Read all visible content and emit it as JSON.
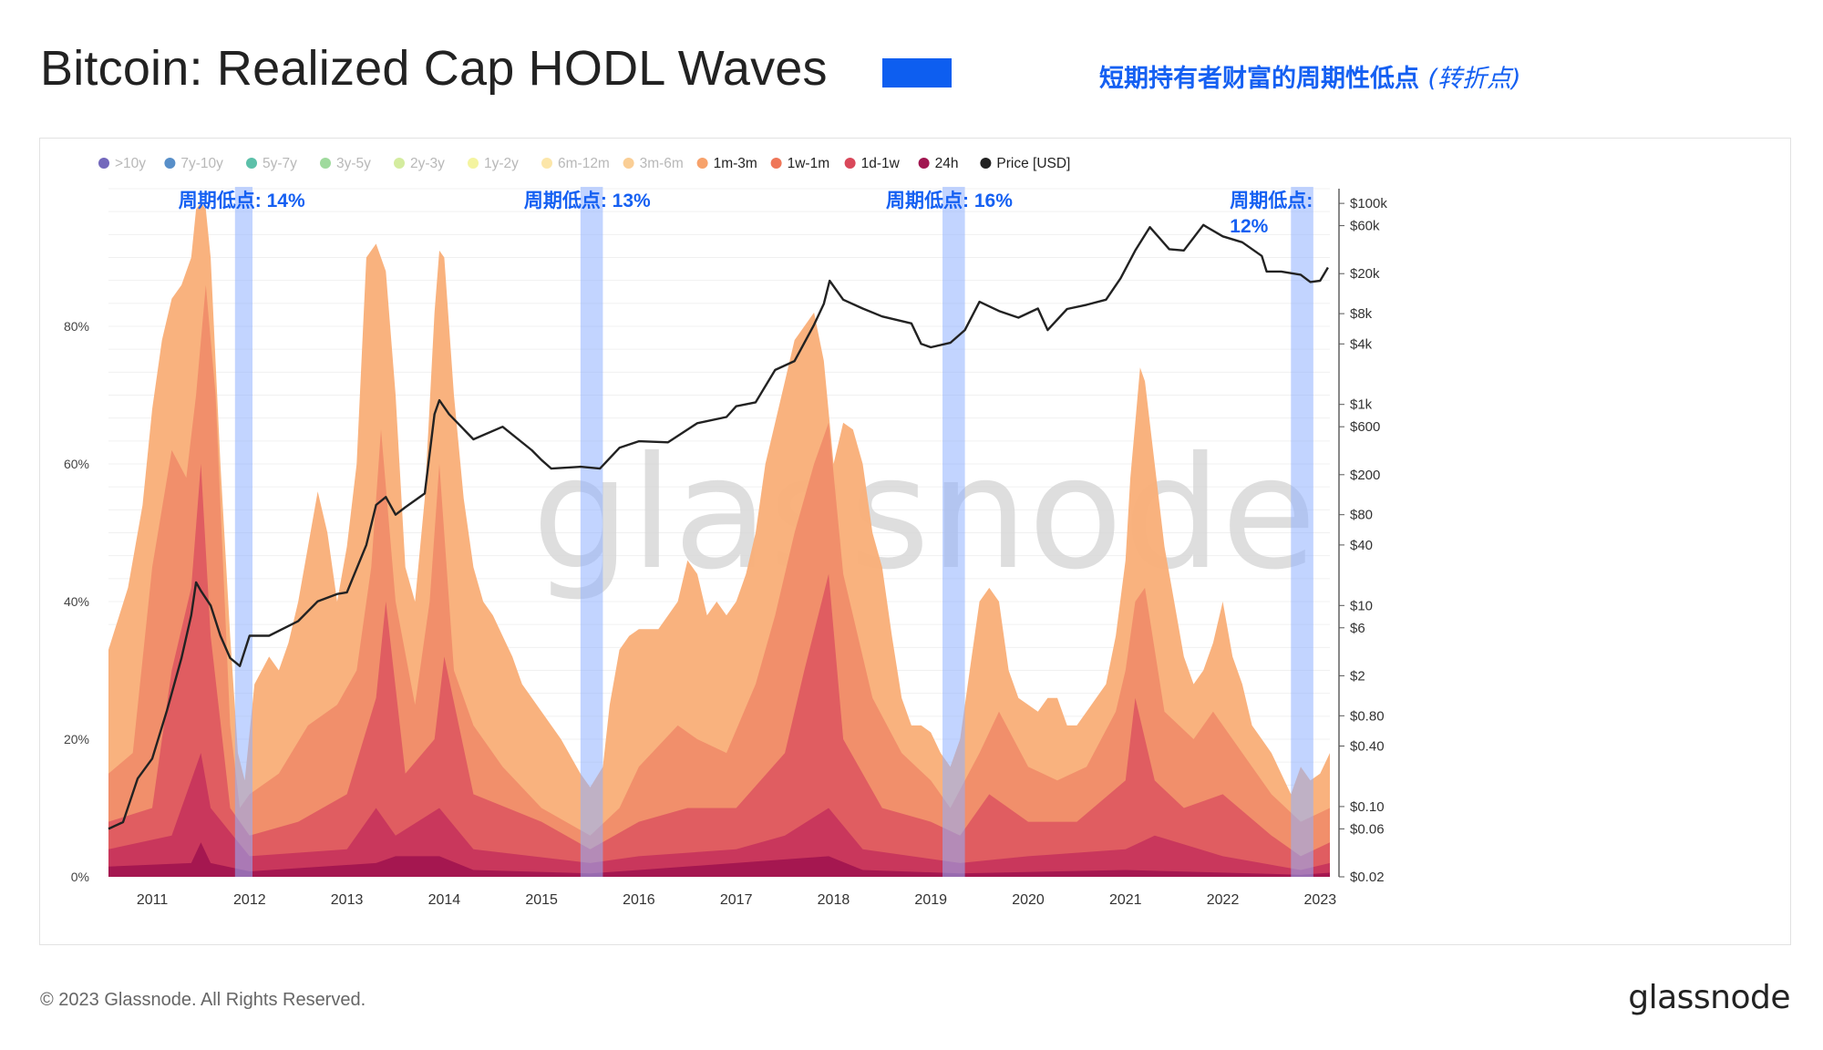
{
  "header": {
    "title": "Bitcoin: Realized Cap HODL Waves",
    "subtitle_main": "短期持有者财富的周期性低点",
    "subtitle_paren": "(转折点)",
    "swatch_color": "#0d5ef0"
  },
  "footer": {
    "copyright": "© 2023 Glassnode. All Rights Reserved.",
    "logo": "glassnode"
  },
  "watermark": "glassnode",
  "chart_data": {
    "type": "area",
    "title": "Bitcoin: Realized Cap HODL Waves",
    "legend_position": "top-left",
    "legend": [
      {
        "label": ">10y",
        "color": "#5b4db0",
        "active": false
      },
      {
        "label": "7y-10y",
        "color": "#3b7bbf",
        "active": false
      },
      {
        "label": "5y-7y",
        "color": "#3fb59a",
        "active": false
      },
      {
        "label": "3y-5y",
        "color": "#8ed38c",
        "active": false
      },
      {
        "label": "2y-3y",
        "color": "#cde98e",
        "active": false
      },
      {
        "label": "1y-2y",
        "color": "#f2f28f",
        "active": false
      },
      {
        "label": "6m-12m",
        "color": "#fbe29a",
        "active": false
      },
      {
        "label": "3m-6m",
        "color": "#f9c583",
        "active": false
      },
      {
        "label": "1m-3m",
        "color": "#f7a26b",
        "active": true
      },
      {
        "label": "1w-1m",
        "color": "#ef7759",
        "active": true
      },
      {
        "label": "1d-1w",
        "color": "#d9485a",
        "active": true
      },
      {
        "label": "24h",
        "color": "#a11650",
        "active": true
      },
      {
        "label": "Price [USD]",
        "color": "#222222",
        "active": true
      }
    ],
    "x_ticks": [
      "2011",
      "2012",
      "2013",
      "2014",
      "2015",
      "2016",
      "2017",
      "2018",
      "2019",
      "2020",
      "2021",
      "2022",
      "2023"
    ],
    "x_range": [
      2010.55,
      2023.1
    ],
    "y_left_ticks": [
      "0%",
      "20%",
      "40%",
      "60%",
      "80%"
    ],
    "y_left_range": [
      0,
      100
    ],
    "y_right_ticks": [
      "$100k",
      "$60k",
      "$20k",
      "$8k",
      "$4k",
      "$1k",
      "$600",
      "$200",
      "$80",
      "$40",
      "$10",
      "$6",
      "$2",
      "$0.80",
      "$0.40",
      "$0.10",
      "$0.06",
      "$0.02"
    ],
    "y_right_values": [
      100000,
      60000,
      20000,
      8000,
      4000,
      1000,
      600,
      200,
      80,
      40,
      10,
      6,
      2,
      0.8,
      0.4,
      0.1,
      0.06,
      0.02
    ],
    "y_right_scale": "log",
    "y_right_range": [
      0.02,
      140000
    ],
    "cycle_lows": [
      {
        "label": "周期低点: 14%",
        "x_start": 2011.85,
        "x_end": 2012.03,
        "value": 14
      },
      {
        "label": "周期低点: 13%",
        "x_start": 2015.4,
        "x_end": 2015.63,
        "value": 13
      },
      {
        "label": "周期低点: 16%",
        "x_start": 2019.12,
        "x_end": 2019.35,
        "value": 16
      },
      {
        "label_line1": "周期低点:",
        "label_line2": "12%",
        "x_start": 2022.7,
        "x_end": 2022.93,
        "value": 12
      }
    ],
    "series": [
      {
        "name": "3m-6m",
        "color": "#f9b07a",
        "x": [
          2010.55,
          2010.75,
          2010.9,
          2011.0,
          2011.1,
          2011.2,
          2011.3,
          2011.4,
          2011.45,
          2011.5,
          2011.55,
          2011.6,
          2011.7,
          2011.8,
          2011.88,
          2011.95,
          2012.05,
          2012.2,
          2012.3,
          2012.4,
          2012.5,
          2012.6,
          2012.7,
          2012.8,
          2012.9,
          2013.0,
          2013.1,
          2013.2,
          2013.3,
          2013.4,
          2013.5,
          2013.6,
          2013.7,
          2013.8,
          2013.9,
          2013.95,
          2014.0,
          2014.1,
          2014.2,
          2014.3,
          2014.4,
          2014.5,
          2014.6,
          2014.7,
          2014.8,
          2014.9,
          2015.0,
          2015.2,
          2015.4,
          2015.5,
          2015.63,
          2015.7,
          2015.8,
          2015.9,
          2016.0,
          2016.2,
          2016.4,
          2016.5,
          2016.6,
          2016.7,
          2016.8,
          2016.9,
          2017.0,
          2017.1,
          2017.2,
          2017.3,
          2017.4,
          2017.5,
          2017.6,
          2017.7,
          2017.8,
          2017.9,
          2018.0,
          2018.1,
          2018.2,
          2018.3,
          2018.4,
          2018.5,
          2018.6,
          2018.7,
          2018.8,
          2018.9,
          2019.0,
          2019.1,
          2019.2,
          2019.3,
          2019.4,
          2019.5,
          2019.6,
          2019.7,
          2019.8,
          2019.9,
          2020.0,
          2020.1,
          2020.2,
          2020.3,
          2020.4,
          2020.5,
          2020.6,
          2020.7,
          2020.8,
          2020.9,
          2021.0,
          2021.05,
          2021.1,
          2021.15,
          2021.2,
          2021.3,
          2021.4,
          2021.5,
          2021.6,
          2021.7,
          2021.8,
          2021.9,
          2022.0,
          2022.1,
          2022.2,
          2022.3,
          2022.4,
          2022.5,
          2022.6,
          2022.7,
          2022.8,
          2022.9,
          2023.0,
          2023.1
        ],
        "values": [
          33,
          42,
          54,
          68,
          78,
          84,
          86,
          90,
          97,
          98,
          97,
          90,
          60,
          35,
          18,
          14,
          28,
          32,
          30,
          34,
          40,
          48,
          56,
          50,
          40,
          48,
          60,
          90,
          92,
          88,
          70,
          45,
          40,
          55,
          82,
          91,
          90,
          70,
          55,
          45,
          40,
          38,
          35,
          32,
          28,
          26,
          24,
          20,
          15,
          13,
          16,
          25,
          33,
          35,
          36,
          36,
          40,
          46,
          44,
          38,
          40,
          38,
          40,
          44,
          50,
          60,
          66,
          72,
          78,
          80,
          82,
          75,
          60,
          66,
          65,
          60,
          50,
          45,
          35,
          26,
          22,
          22,
          21,
          18,
          16,
          20,
          30,
          40,
          42,
          40,
          30,
          26,
          25,
          24,
          26,
          26,
          22,
          22,
          24,
          26,
          28,
          35,
          46,
          58,
          66,
          74,
          72,
          60,
          48,
          40,
          32,
          28,
          30,
          34,
          40,
          32,
          28,
          22,
          20,
          18,
          15,
          12,
          16,
          14,
          15,
          18
        ]
      },
      {
        "name": "1m-3m",
        "color": "#f18d6a",
        "x": [
          2010.55,
          2010.8,
          2011.0,
          2011.2,
          2011.35,
          2011.45,
          2011.55,
          2011.65,
          2011.8,
          2011.9,
          2012.0,
          2012.3,
          2012.6,
          2012.9,
          2013.1,
          2013.25,
          2013.35,
          2013.5,
          2013.7,
          2013.85,
          2013.95,
          2014.1,
          2014.3,
          2014.6,
          2015.0,
          2015.5,
          2015.8,
          2016.0,
          2016.4,
          2016.6,
          2016.9,
          2017.2,
          2017.4,
          2017.6,
          2017.8,
          2017.95,
          2018.1,
          2018.4,
          2018.7,
          2019.0,
          2019.2,
          2019.5,
          2019.7,
          2020.0,
          2020.3,
          2020.6,
          2020.9,
          2021.0,
          2021.1,
          2021.2,
          2021.4,
          2021.7,
          2021.9,
          2022.2,
          2022.5,
          2022.8,
          2023.1
        ],
        "values": [
          15,
          18,
          45,
          62,
          58,
          70,
          86,
          70,
          22,
          10,
          12,
          15,
          22,
          25,
          30,
          45,
          65,
          40,
          25,
          40,
          60,
          30,
          22,
          16,
          10,
          6,
          10,
          16,
          22,
          20,
          18,
          28,
          38,
          50,
          60,
          66,
          44,
          26,
          18,
          14,
          10,
          18,
          24,
          16,
          14,
          16,
          24,
          30,
          40,
          42,
          24,
          20,
          24,
          18,
          12,
          8,
          10
        ]
      },
      {
        "name": "1w-1m",
        "color": "#df5b61",
        "x": [
          2010.55,
          2011.0,
          2011.2,
          2011.4,
          2011.5,
          2011.6,
          2011.8,
          2012.0,
          2012.5,
          2013.0,
          2013.3,
          2013.4,
          2013.6,
          2013.9,
          2014.0,
          2014.3,
          2015.0,
          2015.5,
          2016.0,
          2016.5,
          2017.0,
          2017.5,
          2017.7,
          2017.95,
          2018.1,
          2018.5,
          2019.0,
          2019.3,
          2019.6,
          2020.0,
          2020.5,
          2021.0,
          2021.1,
          2021.3,
          2021.6,
          2022.0,
          2022.5,
          2022.8,
          2023.1
        ],
        "values": [
          8,
          10,
          30,
          42,
          60,
          35,
          10,
          6,
          8,
          12,
          26,
          40,
          15,
          20,
          32,
          12,
          8,
          4,
          8,
          10,
          10,
          18,
          30,
          44,
          20,
          10,
          8,
          6,
          12,
          8,
          8,
          14,
          26,
          14,
          10,
          12,
          6,
          3,
          5
        ]
      },
      {
        "name": "1d-1w",
        "color": "#c8365c",
        "x": [
          2010.55,
          2011.2,
          2011.4,
          2011.5,
          2011.6,
          2012.0,
          2013.0,
          2013.3,
          2013.5,
          2013.95,
          2014.3,
          2015.5,
          2016.0,
          2017.0,
          2017.5,
          2017.95,
          2018.3,
          2019.3,
          2020.0,
          2021.0,
          2021.3,
          2022.0,
          2022.8,
          2023.1
        ],
        "values": [
          4,
          6,
          14,
          18,
          10,
          3,
          4,
          10,
          6,
          10,
          4,
          2,
          3,
          4,
          6,
          10,
          4,
          2,
          3,
          4,
          6,
          3,
          1,
          2
        ]
      },
      {
        "name": "24h",
        "color": "#a3174f",
        "x": [
          2010.55,
          2011.4,
          2011.5,
          2011.6,
          2012.0,
          2013.3,
          2013.5,
          2013.95,
          2014.3,
          2015.5,
          2016.0,
          2017.95,
          2018.3,
          2019.3,
          2021.0,
          2022.8,
          2023.1
        ],
        "values": [
          1.5,
          2,
          5,
          2,
          0.8,
          2,
          3,
          3,
          1,
          0.5,
          1,
          3,
          1,
          0.5,
          1,
          0.3,
          0.6
        ]
      },
      {
        "name": "Price [USD]",
        "color": "#222222",
        "x": [
          2010.55,
          2010.7,
          2010.85,
          2011.0,
          2011.15,
          2011.3,
          2011.4,
          2011.45,
          2011.5,
          2011.6,
          2011.7,
          2011.8,
          2011.9,
          2012.0,
          2012.2,
          2012.5,
          2012.7,
          2012.9,
          2013.0,
          2013.2,
          2013.3,
          2013.4,
          2013.5,
          2013.6,
          2013.8,
          2013.9,
          2013.95,
          2014.05,
          2014.3,
          2014.6,
          2014.9,
          2015.0,
          2015.1,
          2015.4,
          2015.6,
          2015.8,
          2016.0,
          2016.3,
          2016.6,
          2016.9,
          2017.0,
          2017.2,
          2017.4,
          2017.6,
          2017.8,
          2017.9,
          2017.96,
          2018.1,
          2018.3,
          2018.5,
          2018.8,
          2018.9,
          2019.0,
          2019.2,
          2019.35,
          2019.5,
          2019.7,
          2019.9,
          2020.1,
          2020.2,
          2020.4,
          2020.6,
          2020.8,
          2020.95,
          2021.1,
          2021.25,
          2021.45,
          2021.6,
          2021.8,
          2021.85,
          2022.0,
          2022.2,
          2022.4,
          2022.45,
          2022.6,
          2022.8,
          2022.9,
          2023.0,
          2023.08
        ],
        "values": [
          0.06,
          0.07,
          0.19,
          0.3,
          0.9,
          3,
          8,
          17,
          14,
          10,
          5,
          3,
          2.5,
          5,
          5,
          7,
          11,
          13,
          13.5,
          40,
          100,
          120,
          80,
          95,
          130,
          800,
          1100,
          800,
          450,
          600,
          350,
          280,
          230,
          240,
          230,
          370,
          430,
          420,
          650,
          750,
          960,
          1050,
          2200,
          2700,
          6200,
          10000,
          17000,
          11000,
          9000,
          7500,
          6400,
          4000,
          3700,
          4100,
          5500,
          10500,
          8500,
          7300,
          9000,
          5500,
          8900,
          9800,
          11000,
          18000,
          34000,
          58000,
          35000,
          34000,
          61000,
          57000,
          47000,
          41000,
          30000,
          21000,
          21000,
          19500,
          16500,
          17000,
          23000
        ]
      }
    ]
  }
}
